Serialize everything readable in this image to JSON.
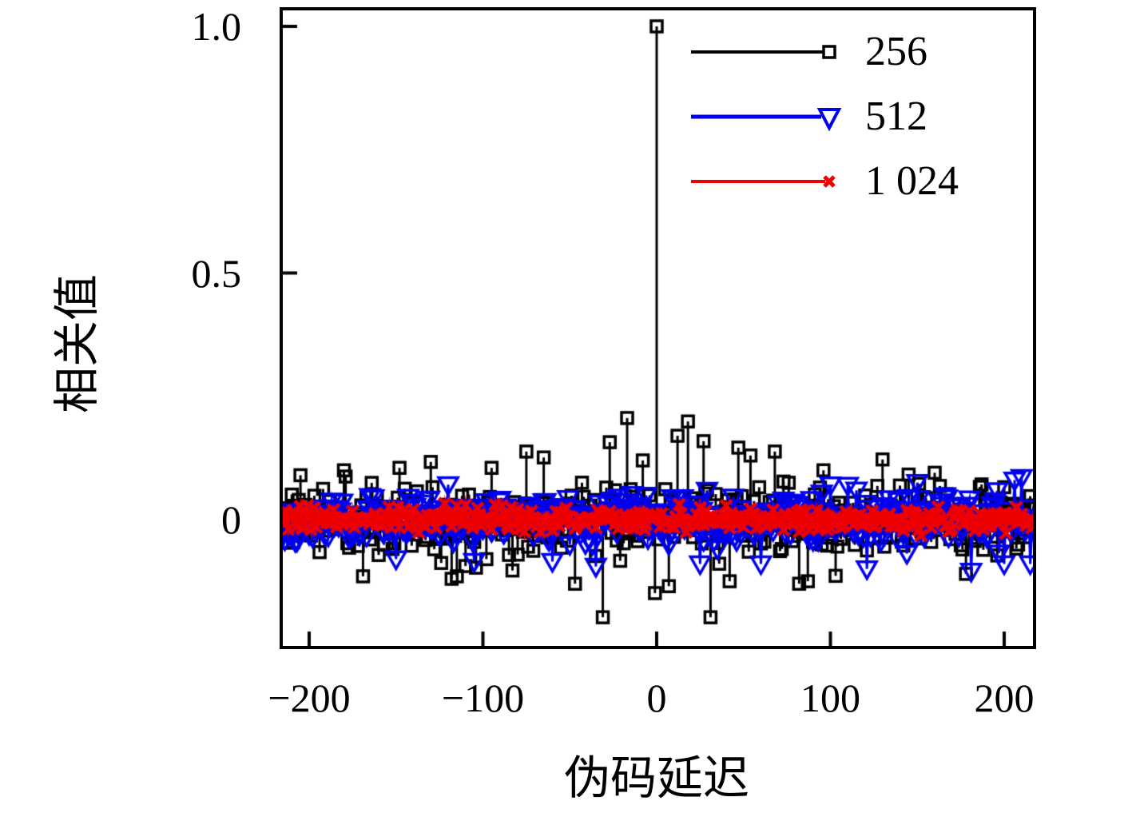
{
  "figure": {
    "background": "#ffffff",
    "axis_color": "#000000"
  },
  "chart_data": {
    "type": "scatter",
    "title": "",
    "xlabel": "伪码延迟",
    "ylabel": "相关值",
    "xlim": [
      -216,
      217
    ],
    "ylim": [
      -0.256,
      1.032
    ],
    "grid": false,
    "legend_position": "top-right",
    "xticks": {
      "values": [
        -200,
        -100,
        0,
        100,
        200
      ],
      "labels": [
        "−200",
        "−100",
        "0",
        "100",
        "200"
      ]
    },
    "yticks": {
      "values": [
        0,
        0.5,
        1.0
      ],
      "labels": [
        "0",
        "0.5",
        "1.0"
      ]
    },
    "series": [
      {
        "name": "256",
        "color": "#000000",
        "marker": "square",
        "style": "stem",
        "noise_sigma": 0.035,
        "noise_max": 0.105,
        "seed": 11,
        "features": [
          [
            0,
            1.0
          ],
          [
            -31,
            -0.198
          ],
          [
            31,
            -0.198
          ],
          [
            -17,
            0.206
          ],
          [
            18,
            0.199
          ],
          [
            -27,
            0.157
          ],
          [
            27,
            0.159
          ],
          [
            12,
            0.17
          ],
          [
            47,
            0.146
          ],
          [
            -1,
            -0.149
          ],
          [
            7,
            -0.135
          ],
          [
            -47,
            -0.13
          ],
          [
            -75,
            0.138
          ],
          [
            -65,
            0.126
          ],
          [
            -130,
            0.117
          ],
          [
            -95,
            0.105
          ],
          [
            54,
            0.13
          ],
          [
            68,
            0.138
          ],
          [
            130,
            0.122
          ],
          [
            96,
            0.1
          ],
          [
            -8,
            0.12
          ],
          [
            42,
            -0.125
          ],
          [
            87,
            -0.125
          ],
          [
            -115,
            -0.115
          ],
          [
            178,
            -0.11
          ],
          [
            82,
            -0.13
          ],
          [
            103,
            -0.114
          ],
          [
            -169,
            -0.115
          ],
          [
            -118,
            -0.12
          ],
          [
            -180,
            0.1
          ],
          [
            -148,
            0.105
          ],
          [
            160,
            0.095
          ],
          [
            -205,
            0.09
          ]
        ]
      },
      {
        "name": "512",
        "color": "#0000ee",
        "marker": "triangle-down",
        "style": "line",
        "noise_sigma": 0.024,
        "noise_max": 0.075,
        "seed": 22,
        "features": [
          [
            181,
            -0.105
          ],
          [
            121,
            -0.1
          ],
          [
            200,
            -0.09
          ],
          [
            -105,
            -0.085
          ],
          [
            206,
            0.08
          ],
          [
            210,
            0.085
          ],
          [
            150,
            0.075
          ],
          [
            -35,
            -0.095
          ],
          [
            60,
            -0.09
          ],
          [
            100,
            0.07
          ],
          [
            -150,
            -0.08
          ],
          [
            215,
            -0.09
          ],
          [
            -60,
            -0.085
          ],
          [
            25,
            -0.09
          ]
        ]
      },
      {
        "name": "1 024",
        "color": "#ee0000",
        "marker": "x",
        "style": "line",
        "noise_sigma": 0.012,
        "noise_max": 0.035,
        "seed": 33,
        "features": []
      }
    ],
    "peak": {
      "x": 0,
      "y": 1.0,
      "series": "256"
    }
  }
}
